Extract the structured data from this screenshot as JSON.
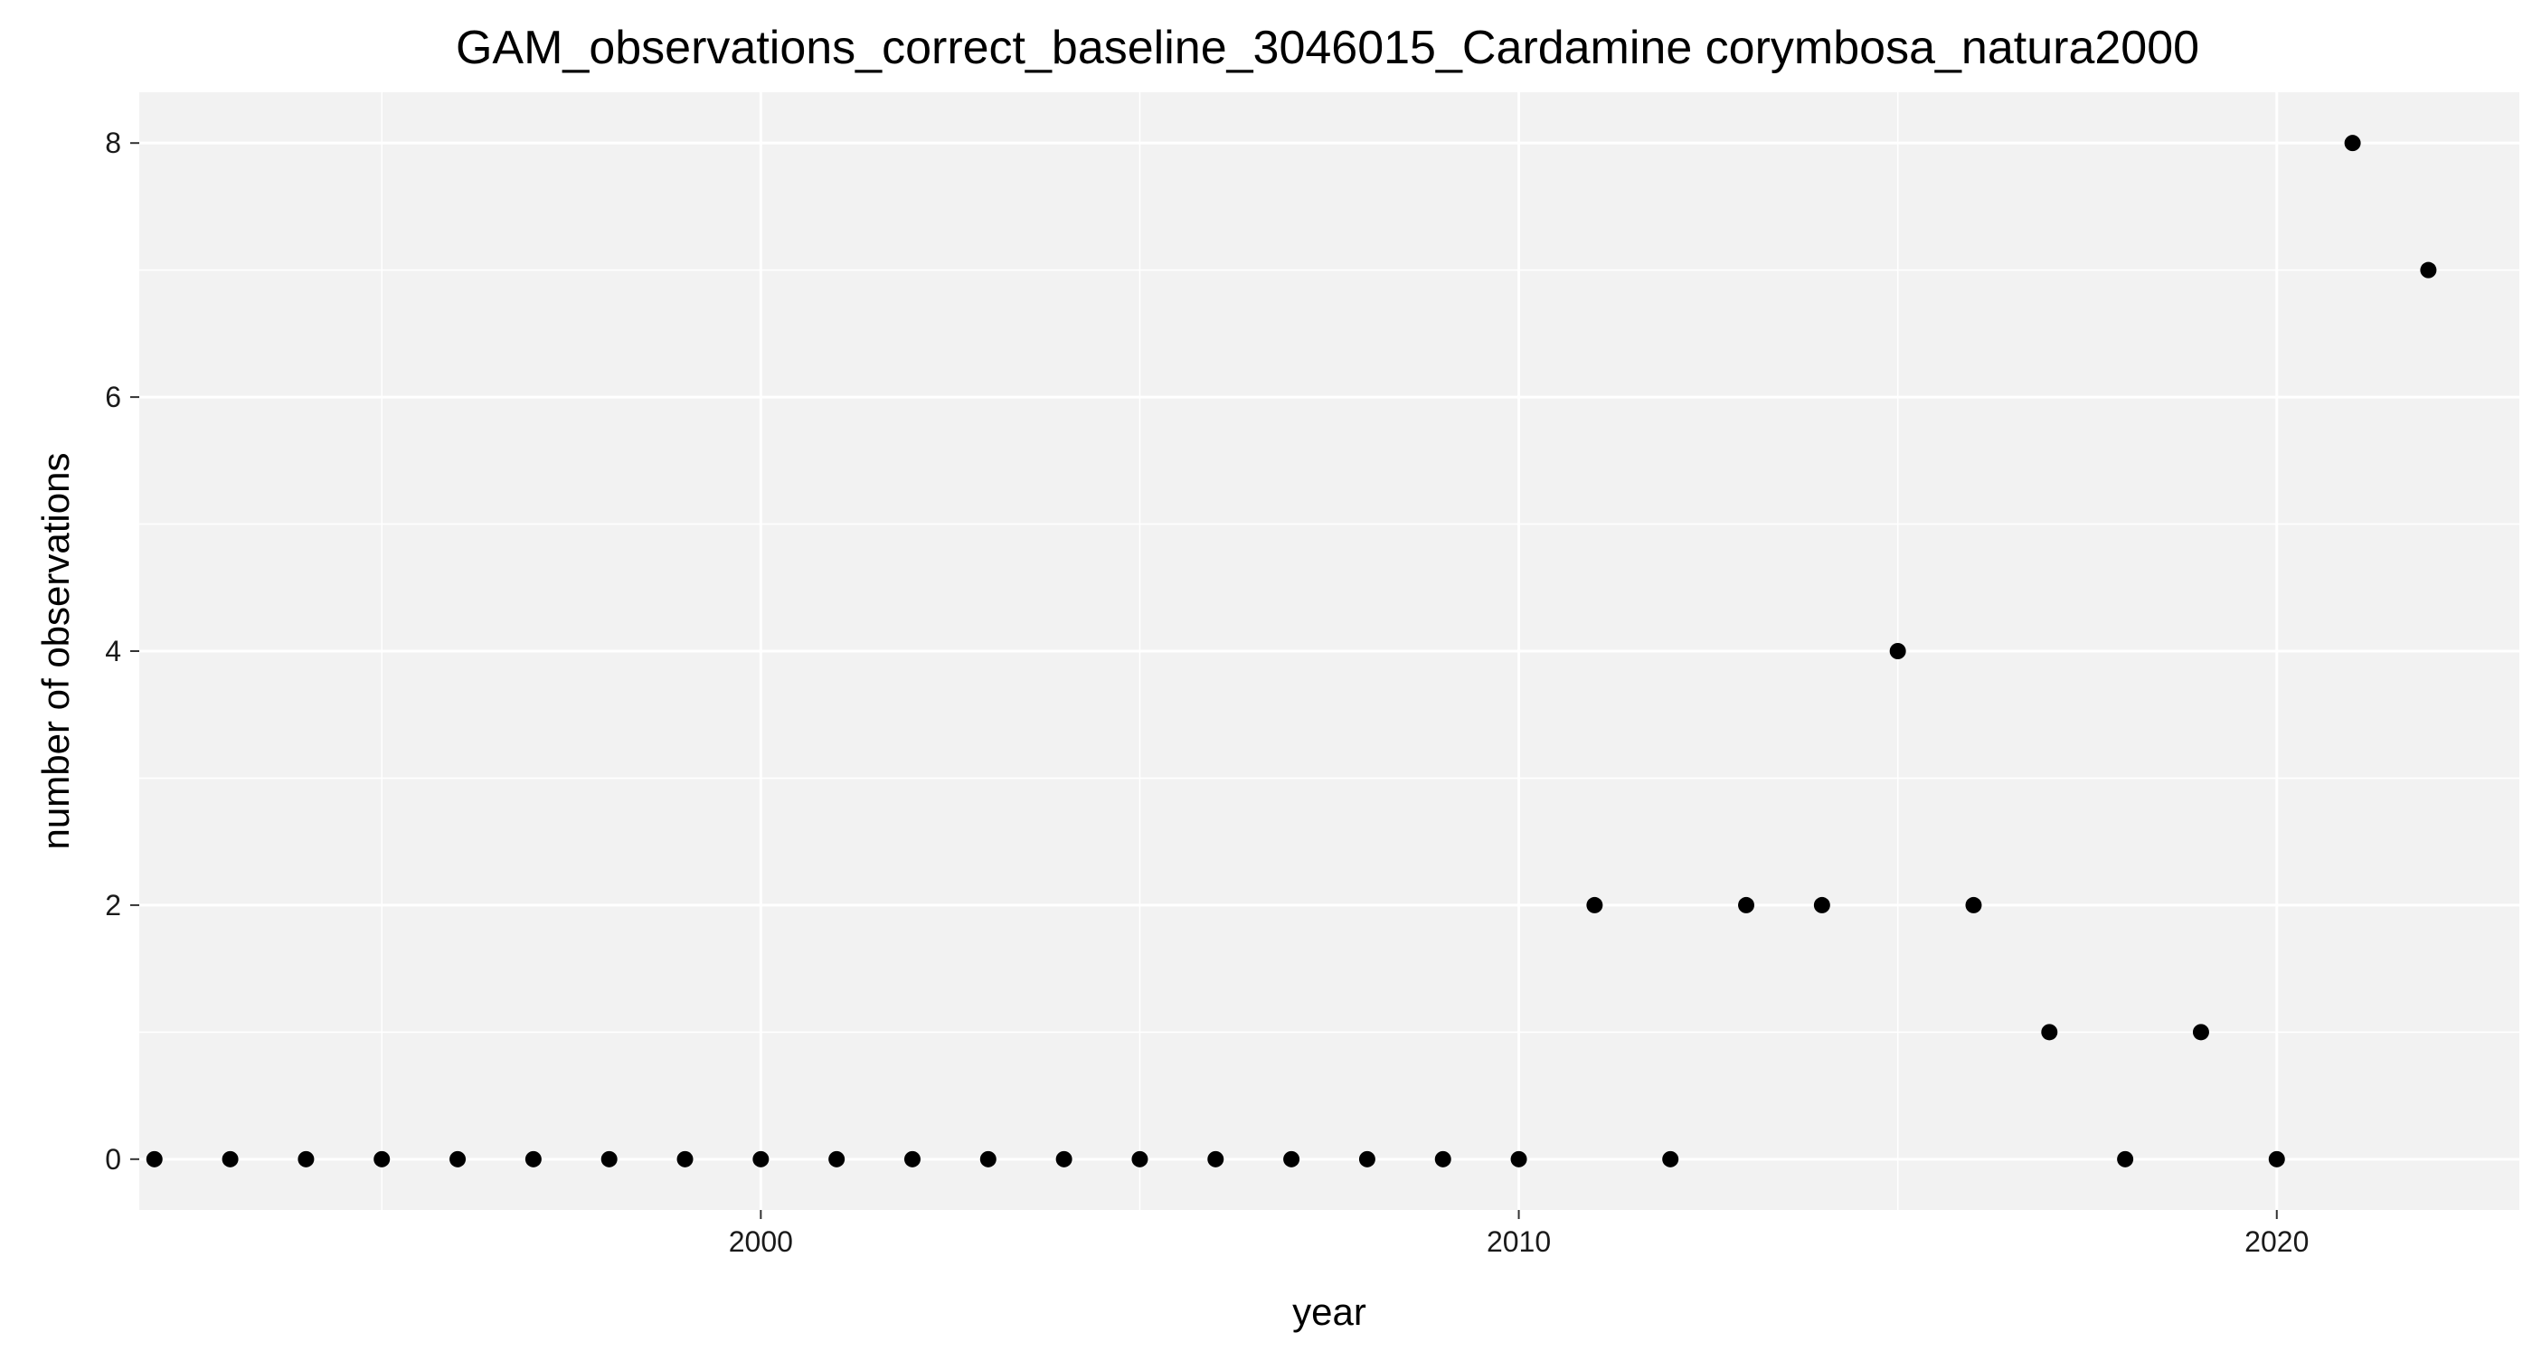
{
  "chart_data": {
    "type": "scatter",
    "title": "GAM_observations_correct_baseline_3046015_Cardamine corymbosa_natura2000",
    "xlabel": "year",
    "ylabel": "number of observations",
    "xlim": [
      1991.8,
      2023.2
    ],
    "ylim": [
      -0.4,
      8.4
    ],
    "x_ticks": [
      2000,
      2010,
      2020
    ],
    "x_minor_ticks": [
      1995,
      2005,
      2015
    ],
    "y_ticks": [
      0,
      2,
      4,
      6,
      8
    ],
    "y_minor_ticks": [
      1,
      3,
      5,
      7
    ],
    "grid": true,
    "legend": "none",
    "colors": {
      "panel_background": "#f2f2f2",
      "grid": "#ffffff",
      "point": "#000000"
    },
    "points": [
      {
        "x": 1992,
        "y": 0
      },
      {
        "x": 1993,
        "y": 0
      },
      {
        "x": 1994,
        "y": 0
      },
      {
        "x": 1995,
        "y": 0
      },
      {
        "x": 1996,
        "y": 0
      },
      {
        "x": 1997,
        "y": 0
      },
      {
        "x": 1998,
        "y": 0
      },
      {
        "x": 1999,
        "y": 0
      },
      {
        "x": 2000,
        "y": 0
      },
      {
        "x": 2001,
        "y": 0
      },
      {
        "x": 2002,
        "y": 0
      },
      {
        "x": 2003,
        "y": 0
      },
      {
        "x": 2004,
        "y": 0
      },
      {
        "x": 2005,
        "y": 0
      },
      {
        "x": 2006,
        "y": 0
      },
      {
        "x": 2007,
        "y": 0
      },
      {
        "x": 2008,
        "y": 0
      },
      {
        "x": 2009,
        "y": 0
      },
      {
        "x": 2010,
        "y": 0
      },
      {
        "x": 2011,
        "y": 2
      },
      {
        "x": 2012,
        "y": 0
      },
      {
        "x": 2013,
        "y": 2
      },
      {
        "x": 2014,
        "y": 2
      },
      {
        "x": 2015,
        "y": 4
      },
      {
        "x": 2016,
        "y": 2
      },
      {
        "x": 2017,
        "y": 1
      },
      {
        "x": 2018,
        "y": 0
      },
      {
        "x": 2019,
        "y": 1
      },
      {
        "x": 2020,
        "y": 0
      },
      {
        "x": 2021,
        "y": 8
      },
      {
        "x": 2022,
        "y": 7
      }
    ]
  }
}
